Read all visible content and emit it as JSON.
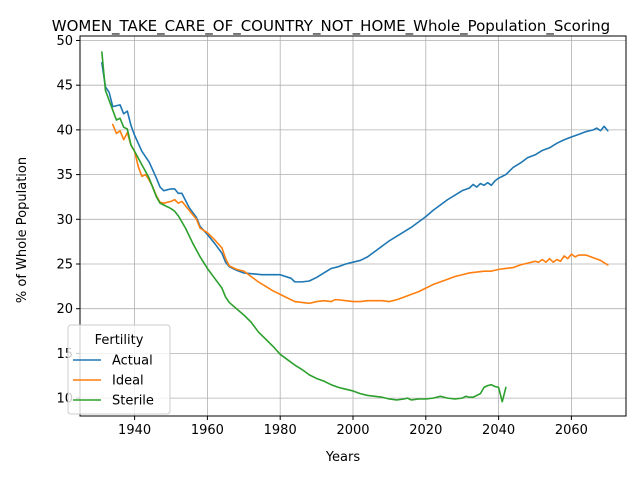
{
  "chart_data": {
    "type": "line",
    "title": "WOMEN_TAKE_CARE_OF_COUNTRY_NOT_HOME_Whole_Population_Scoring",
    "xlabel": "Years",
    "ylabel": "% of Whole Population",
    "xlim": [
      1925,
      2075
    ],
    "ylim": [
      8,
      50.5
    ],
    "xticks": [
      1940,
      1960,
      1980,
      2000,
      2020,
      2040,
      2060
    ],
    "yticks": [
      10,
      15,
      20,
      25,
      30,
      35,
      40,
      45,
      50
    ],
    "grid": true,
    "legend": {
      "title": "Fertility",
      "placement": "lower-left"
    },
    "series": [
      {
        "name": "Actual",
        "color": "#1f77b4",
        "x": [
          1931,
          1932,
          1933,
          1934,
          1935,
          1936,
          1937,
          1938,
          1939,
          1940,
          1942,
          1944,
          1946,
          1947,
          1948,
          1950,
          1951,
          1952,
          1953,
          1955,
          1957,
          1958,
          1960,
          1962,
          1964,
          1965,
          1966,
          1968,
          1970,
          1975,
          1978,
          1980,
          1983,
          1984,
          1986,
          1988,
          1990,
          1992,
          1994,
          1996,
          1998,
          2000,
          2002,
          2004,
          2006,
          2008,
          2010,
          2012,
          2014,
          2016,
          2018,
          2020,
          2022,
          2024,
          2026,
          2028,
          2030,
          2032,
          2033,
          2034,
          2035,
          2036,
          2037,
          2038,
          2039,
          2040,
          2041,
          2042,
          2044,
          2046,
          2048,
          2050,
          2052,
          2054,
          2056,
          2058,
          2060,
          2062,
          2064,
          2065,
          2066,
          2067,
          2068,
          2069,
          2070
        ],
        "y": [
          47.5,
          44.8,
          44.2,
          42.6,
          42.7,
          42.8,
          41.8,
          42.1,
          40.5,
          39.4,
          37.6,
          36.4,
          34.6,
          33.6,
          33.2,
          33.4,
          33.4,
          32.9,
          32.9,
          31.3,
          30.2,
          29.2,
          28.3,
          27.3,
          26.2,
          25.2,
          24.7,
          24.3,
          24.0,
          23.8,
          23.8,
          23.8,
          23.4,
          23.0,
          23.0,
          23.1,
          23.5,
          24.0,
          24.5,
          24.7,
          25.0,
          25.2,
          25.4,
          25.8,
          26.4,
          27.0,
          27.6,
          28.1,
          28.6,
          29.1,
          29.7,
          30.3,
          31.0,
          31.6,
          32.2,
          32.7,
          33.2,
          33.5,
          33.9,
          33.6,
          34.0,
          33.8,
          34.1,
          33.8,
          34.3,
          34.6,
          34.8,
          35.0,
          35.8,
          36.3,
          36.9,
          37.2,
          37.7,
          38.0,
          38.5,
          38.9,
          39.2,
          39.5,
          39.8,
          39.9,
          40.0,
          40.2,
          39.9,
          40.4,
          39.9
        ]
      },
      {
        "name": "Ideal",
        "color": "#ff7f0e",
        "x": [
          1934,
          1935,
          1936,
          1937,
          1938,
          1939,
          1940,
          1941,
          1942,
          1943,
          1944,
          1945,
          1946,
          1947,
          1948,
          1950,
          1951,
          1952,
          1953,
          1955,
          1957,
          1958,
          1960,
          1962,
          1964,
          1965,
          1966,
          1968,
          1970,
          1972,
          1974,
          1976,
          1978,
          1980,
          1982,
          1984,
          1986,
          1988,
          1990,
          1992,
          1994,
          1995,
          1996,
          1998,
          2000,
          2002,
          2004,
          2006,
          2008,
          2010,
          2012,
          2014,
          2016,
          2018,
          2020,
          2022,
          2024,
          2026,
          2028,
          2030,
          2032,
          2034,
          2036,
          2038,
          2040,
          2042,
          2044,
          2046,
          2048,
          2050,
          2051,
          2052,
          2053,
          2054,
          2055,
          2056,
          2057,
          2058,
          2059,
          2060,
          2061,
          2062,
          2064,
          2066,
          2068,
          2070
        ],
        "y": [
          40.6,
          39.6,
          39.9,
          38.9,
          39.7,
          38.3,
          37.6,
          35.9,
          34.8,
          35.0,
          34.4,
          33.6,
          32.6,
          31.9,
          31.8,
          32.0,
          32.2,
          31.8,
          32.0,
          31.0,
          30.0,
          29.0,
          28.5,
          27.7,
          26.8,
          25.6,
          24.8,
          24.4,
          24.2,
          23.6,
          23.0,
          22.5,
          22.0,
          21.6,
          21.2,
          20.8,
          20.7,
          20.6,
          20.8,
          20.9,
          20.8,
          21.0,
          21.0,
          20.9,
          20.8,
          20.8,
          20.9,
          20.9,
          20.9,
          20.8,
          21.0,
          21.3,
          21.6,
          21.9,
          22.3,
          22.7,
          23.0,
          23.3,
          23.6,
          23.8,
          24.0,
          24.1,
          24.2,
          24.2,
          24.4,
          24.5,
          24.6,
          24.9,
          25.1,
          25.3,
          25.2,
          25.5,
          25.2,
          25.6,
          25.2,
          25.5,
          25.3,
          25.9,
          25.6,
          26.1,
          25.8,
          26.0,
          26.0,
          25.7,
          25.4,
          24.9
        ]
      },
      {
        "name": "Sterile",
        "color": "#2ca02c",
        "x": [
          1931,
          1932,
          1933,
          1934,
          1935,
          1936,
          1937,
          1938,
          1939,
          1940,
          1942,
          1944,
          1946,
          1947,
          1948,
          1950,
          1951,
          1952,
          1954,
          1956,
          1958,
          1960,
          1962,
          1964,
          1965,
          1966,
          1968,
          1970,
          1972,
          1974,
          1976,
          1978,
          1980,
          1982,
          1984,
          1986,
          1988,
          1990,
          1992,
          1994,
          1996,
          1998,
          2000,
          2002,
          2004,
          2006,
          2008,
          2010,
          2012,
          2014,
          2015,
          2016,
          2018,
          2020,
          2022,
          2024,
          2026,
          2028,
          2030,
          2031,
          2032,
          2033,
          2034,
          2035,
          2036,
          2037,
          2038,
          2039,
          2040,
          2041,
          2042
        ],
        "y": [
          48.7,
          44.4,
          43.3,
          42.2,
          41.1,
          41.3,
          40.3,
          40.1,
          38.3,
          37.6,
          36.1,
          34.6,
          32.5,
          31.8,
          31.6,
          31.2,
          30.9,
          30.4,
          29.0,
          27.3,
          25.8,
          24.5,
          23.4,
          22.3,
          21.3,
          20.7,
          20.0,
          19.3,
          18.5,
          17.4,
          16.6,
          15.8,
          14.9,
          14.3,
          13.7,
          13.2,
          12.6,
          12.2,
          11.9,
          11.5,
          11.2,
          11.0,
          10.8,
          10.5,
          10.3,
          10.2,
          10.1,
          9.9,
          9.8,
          9.9,
          10.0,
          9.8,
          9.9,
          9.9,
          10.0,
          10.2,
          10.0,
          9.9,
          10.0,
          10.2,
          10.1,
          10.1,
          10.3,
          10.5,
          11.2,
          11.4,
          11.5,
          11.3,
          11.2,
          9.6,
          11.2
        ]
      }
    ]
  }
}
